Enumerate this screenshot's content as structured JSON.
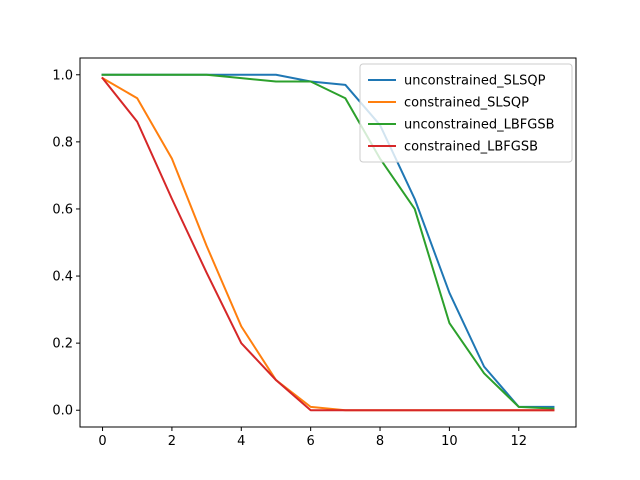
{
  "chart_data": {
    "type": "line",
    "title": "",
    "xlabel": "",
    "ylabel": "",
    "xlim": [
      -0.65,
      13.65
    ],
    "ylim": [
      -0.05,
      1.05
    ],
    "x": [
      0,
      1,
      2,
      3,
      4,
      5,
      6,
      7,
      8,
      9,
      10,
      11,
      12,
      13
    ],
    "xticks": [
      0,
      2,
      4,
      6,
      8,
      10,
      12
    ],
    "yticks": [
      0.0,
      0.2,
      0.4,
      0.6,
      0.8,
      1.0
    ],
    "xtick_labels": [
      "0",
      "2",
      "4",
      "6",
      "8",
      "10",
      "12"
    ],
    "ytick_labels": [
      "0.0",
      "0.2",
      "0.4",
      "0.6",
      "0.8",
      "1.0"
    ],
    "grid": false,
    "legend_position": "top-right",
    "series": [
      {
        "name": "unconstrained_SLSQP",
        "color": "#1f77b4",
        "values": [
          1.0,
          1.0,
          1.0,
          1.0,
          1.0,
          1.0,
          0.98,
          0.97,
          0.85,
          0.63,
          0.35,
          0.13,
          0.01,
          0.01
        ]
      },
      {
        "name": "constrained_SLSQP",
        "color": "#ff7f0e",
        "values": [
          0.99,
          0.93,
          0.75,
          0.49,
          0.25,
          0.09,
          0.01,
          0.0,
          0.0,
          0.0,
          0.0,
          0.0,
          0.0,
          0.0
        ]
      },
      {
        "name": "unconstrained_LBFGSB",
        "color": "#2ca02c",
        "values": [
          1.0,
          1.0,
          1.0,
          1.0,
          0.99,
          0.98,
          0.98,
          0.93,
          0.75,
          0.6,
          0.26,
          0.11,
          0.01,
          0.005
        ]
      },
      {
        "name": "constrained_LBFGSB",
        "color": "#d62728",
        "values": [
          0.99,
          0.86,
          0.63,
          0.41,
          0.2,
          0.09,
          0.0,
          0.0,
          0.0,
          0.0,
          0.0,
          0.0,
          0.0,
          0.0
        ]
      }
    ]
  }
}
